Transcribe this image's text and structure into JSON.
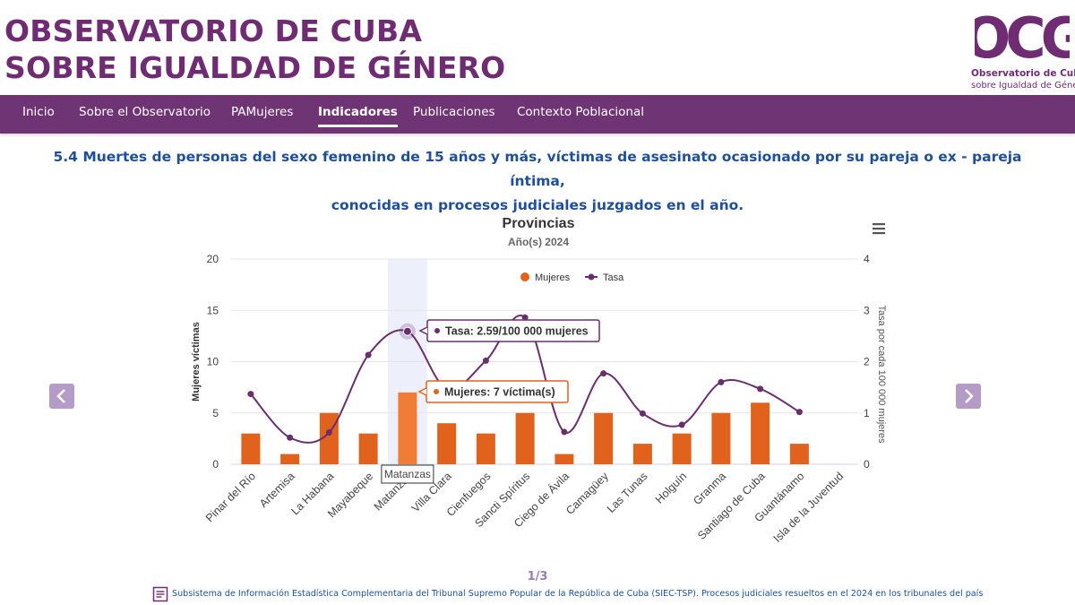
{
  "site": {
    "title_line1": "OBSERVATORIO DE CUBA",
    "title_line2": "SOBRE IGUALDAD DE GÉNERO",
    "logo_mark": "OCG",
    "logo_line1": "Observatorio de Cuba",
    "logo_line2": "sobre Igualdad de Género",
    "brand_color": "#6f2c73",
    "nav_color": "#6f3473"
  },
  "nav": {
    "items": [
      {
        "label": "Inicio",
        "active": false
      },
      {
        "label": "Sobre el Observatorio",
        "active": false
      },
      {
        "label": "PAMujeres",
        "active": false
      },
      {
        "label": "Indicadores",
        "active": true
      },
      {
        "label": "Publicaciones",
        "active": false
      },
      {
        "label": "Contexto Poblacional",
        "active": false
      }
    ]
  },
  "indicator": {
    "title_line1": "5.4 Muertes de personas del sexo femenino de 15 años y más, víctimas de asesinato ocasionado por su pareja o ex - pareja íntima,",
    "title_line2": "conocidas en procesos judiciales juzgados en el año.",
    "title_color": "#1e4f9a"
  },
  "chart_data": {
    "type": "bar",
    "title": "Provincias",
    "subtitle": "Año(s) 2024",
    "categories": [
      "Pinar del Río",
      "Artemisa",
      "La Habana",
      "Mayabeque",
      "Matanzas",
      "Villa Clara",
      "Cienfuegos",
      "Sancti Spíritus",
      "Ciego de Ávila",
      "Camagüey",
      "Las Tunas",
      "Holguín",
      "Granma",
      "Santiago de Cuba",
      "Guantánamo",
      "Isla de la Juventud"
    ],
    "series": [
      {
        "name": "Mujeres",
        "type": "bar",
        "axis": "left",
        "color": "#e0621d",
        "values": [
          3,
          1,
          5,
          3,
          7,
          4,
          3,
          5,
          1,
          5,
          2,
          3,
          5,
          6,
          2,
          null
        ]
      },
      {
        "name": "Tasa",
        "type": "spline",
        "axis": "right",
        "color": "#6a2d6e",
        "values": [
          1.37,
          0.52,
          0.62,
          2.13,
          2.59,
          1.47,
          2.02,
          2.86,
          0.63,
          1.77,
          0.99,
          0.77,
          1.6,
          1.47,
          1.02,
          null
        ]
      }
    ],
    "ylabel": "Mujeres víctimas",
    "ylabel_right": "Tasa por cada 100 000 mujeres",
    "ylim": [
      0,
      20
    ],
    "ylim_right": [
      0,
      4
    ],
    "yticks": [
      "0",
      "5",
      "10",
      "15",
      "20"
    ],
    "yticks_right": [
      "0",
      "1",
      "2",
      "3",
      "4"
    ],
    "grid": true,
    "legend_position": "top",
    "highlight_category": "Matanzas",
    "tooltip_tasa": "Tasa: 2.59/100 000 mujeres",
    "tooltip_mujeres": "Mujeres: 7 víctima(s)",
    "crosshair_label": "Matanzas"
  },
  "pager": "1/3",
  "source": {
    "text": "Subsistema de Información Estadística Complementaria del Tribunal Supremo Popular de la República de Cuba (SIEC-TSP). Procesos judiciales resueltos en el 2024 en los tribunales del país",
    "icon": "document-icon"
  },
  "icons": {
    "menu": "hamburger-menu-icon",
    "prev": "chevron-left-icon",
    "next": "chevron-right-icon"
  }
}
